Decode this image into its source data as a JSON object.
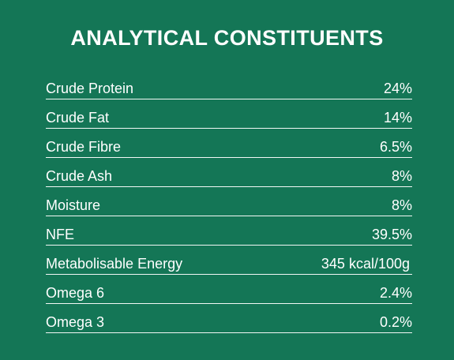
{
  "title": "ANALYTICAL CONSTITUENTS",
  "rows": [
    {
      "label": "Crude Protein",
      "value": "24%"
    },
    {
      "label": "Crude Fat",
      "value": "14%"
    },
    {
      "label": "Crude Fibre",
      "value": "6.5%"
    },
    {
      "label": "Crude Ash",
      "value": "8%"
    },
    {
      "label": "Moisture",
      "value": "8%"
    },
    {
      "label": "NFE",
      "value": "39.5%"
    },
    {
      "label": "Metabolisable Energy",
      "value": "345 kcal/100g"
    },
    {
      "label": "Omega 6",
      "value": "2.4%"
    },
    {
      "label": "Omega 3",
      "value": "0.2%"
    }
  ],
  "colors": {
    "background": "#147656",
    "text": "#ffffff",
    "divider": "#ffffff"
  }
}
